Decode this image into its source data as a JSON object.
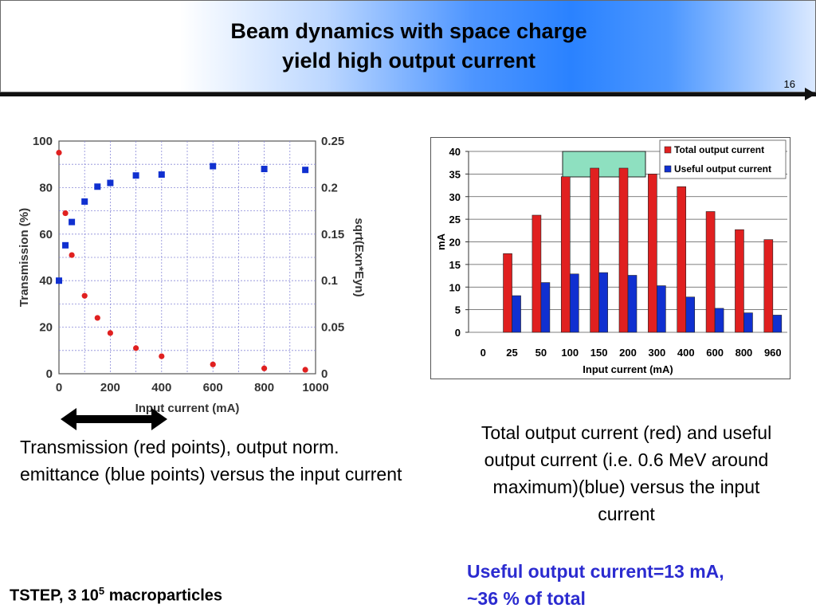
{
  "slide": {
    "title_line1": "Beam dynamics with space charge",
    "title_line2": "yield high output current",
    "slide_number": "16"
  },
  "captions": {
    "left": "Transmission (red points), output norm. emittance (blue points) versus the input current",
    "right": "Total output current (red) and useful output current (i.e. 0.6 MeV around maximum)(blue) versus the input current",
    "highlight_line1": "Useful output current=13 mA,",
    "highlight_line2": "~36 % of total",
    "footer_prefix": "TSTEP, 3 10",
    "footer_exp": "5",
    "footer_suffix": " macroparticles"
  },
  "colors": {
    "red": "#e02020",
    "blue": "#1030d0",
    "highlight_text": "#2b2bd0",
    "highlight_box": "#8ee0c0"
  },
  "chart_data": [
    {
      "type": "scatter",
      "title": "",
      "xlabel": "Input current (mA)",
      "ylabel": "Transmission (%)",
      "y2label": "sqrt(Exn*Eyn)",
      "xlim": [
        0,
        1000
      ],
      "ylim": [
        0,
        100
      ],
      "y2lim": [
        0,
        0.25
      ],
      "grid": true,
      "xticks": [
        "0",
        "200",
        "400",
        "600",
        "800",
        "1000"
      ],
      "yticks": [
        "0",
        "20",
        "40",
        "60",
        "80",
        "100"
      ],
      "y2ticks": [
        "0",
        "0.05",
        "0.1",
        "0.15",
        "0.2",
        "0.25"
      ],
      "series": [
        {
          "axis": "left",
          "color": "red",
          "points": [
            [
              0,
              95
            ],
            [
              25,
              69
            ],
            [
              50,
              51
            ],
            [
              100,
              33.5
            ],
            [
              150,
              24
            ],
            [
              200,
              17.5
            ],
            [
              300,
              11
            ],
            [
              400,
              7.5
            ],
            [
              600,
              4
            ],
            [
              800,
              2.3
            ],
            [
              960,
              1.7
            ]
          ]
        },
        {
          "axis": "right",
          "color": "blue",
          "points": [
            [
              0,
              0.1
            ],
            [
              25,
              0.138
            ],
            [
              50,
              0.163
            ],
            [
              100,
              0.185
            ],
            [
              150,
              0.201
            ],
            [
              200,
              0.205
            ],
            [
              300,
              0.213
            ],
            [
              400,
              0.214
            ],
            [
              600,
              0.223
            ],
            [
              800,
              0.22
            ],
            [
              960,
              0.219
            ]
          ]
        }
      ]
    },
    {
      "type": "bar",
      "title": "",
      "xlabel": "Input current (mA)",
      "ylabel": "mA",
      "ylim": [
        0,
        40
      ],
      "yticks": [
        "0",
        "5",
        "10",
        "15",
        "20",
        "25",
        "30",
        "35",
        "40"
      ],
      "grid": true,
      "legend_position": "top-right",
      "categories": [
        "0",
        "25",
        "50",
        "100",
        "150",
        "200",
        "300",
        "400",
        "600",
        "800",
        "960"
      ],
      "series": [
        {
          "name": "Total output current",
          "color": "red",
          "values": [
            0,
            17.4,
            25.9,
            34.4,
            36.3,
            36.3,
            35.0,
            32.2,
            26.7,
            22.7,
            20.5
          ]
        },
        {
          "name": "Useful output current",
          "color": "blue",
          "values": [
            0,
            8.1,
            11.0,
            12.9,
            13.2,
            12.6,
            10.3,
            7.8,
            5.3,
            4.3,
            3.8
          ]
        }
      ]
    }
  ]
}
